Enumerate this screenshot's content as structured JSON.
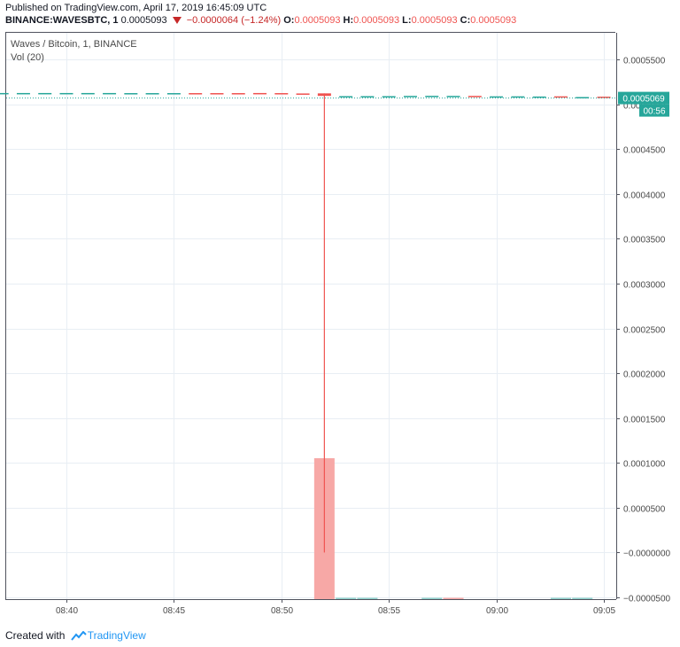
{
  "header": {
    "published": "Published on TradingView.com, April 17, 2019 16:45:09 UTC",
    "symbol": "BINANCE:WAVESBTC, 1",
    "last": "0.0005093",
    "change": "−0.0000064 (−1.24%)",
    "o_label": "O:",
    "o_value": "0.0005093",
    "h_label": "H:",
    "h_value": "0.0005093",
    "l_label": "L:",
    "l_value": "0.0005093",
    "c_label": "C:",
    "c_value": "0.0005093"
  },
  "legend": {
    "title": "Waves / Bitcoin, 1, BINANCE",
    "vol": "Vol (20)"
  },
  "footer": {
    "created_with": "Created with",
    "brand": "TradingView"
  },
  "colors": {
    "up": "#26a69a",
    "down": "#ef5350",
    "volume_down": "#f7a8a6",
    "grid": "#e8eef4",
    "price_badge": "#26a69a"
  },
  "chart_data": {
    "type": "candlestick",
    "ylim": [
      -5e-05,
      0.00056
    ],
    "y_ticks": [
      "0.0005500",
      "0.0005000",
      "0.0004500",
      "0.0004000",
      "0.0003500",
      "0.0003000",
      "0.0002500",
      "0.0002000",
      "0.0001500",
      "0.0001000",
      "0.0000500",
      "−0.0000000",
      "−0.0000500"
    ],
    "y_tick_values": [
      0.00055,
      0.0005,
      0.00045,
      0.0004,
      0.00035,
      0.0003,
      0.00025,
      0.0002,
      0.00015,
      0.0001,
      5e-05,
      0.0,
      -5e-05
    ],
    "x_ticks": [
      "08:40",
      "08:45",
      "08:50",
      "08:55",
      "09:00",
      "09:05"
    ],
    "x_tick_minutes": [
      40,
      45,
      50,
      55,
      60,
      65
    ],
    "candles": [
      {
        "t": 34,
        "o": 0.0005126,
        "h": 0.0005126,
        "l": 0.0005126,
        "c": 0.0005126,
        "dir": "down"
      },
      {
        "t": 35,
        "o": 0.0005126,
        "h": 0.0005126,
        "l": 0.0005126,
        "c": 0.0005126,
        "dir": "down"
      },
      {
        "t": 36,
        "o": 0.0005125,
        "h": 0.0005125,
        "l": 0.0005125,
        "c": 0.0005125,
        "dir": "up"
      },
      {
        "t": 37,
        "o": 0.0005125,
        "h": 0.0005125,
        "l": 0.0005125,
        "c": 0.0005125,
        "dir": "up"
      },
      {
        "t": 38,
        "o": 0.0005125,
        "h": 0.0005125,
        "l": 0.0005125,
        "c": 0.0005125,
        "dir": "up"
      },
      {
        "t": 39,
        "o": 0.0005125,
        "h": 0.0005125,
        "l": 0.0005125,
        "c": 0.0005125,
        "dir": "up"
      },
      {
        "t": 40,
        "o": 0.0005125,
        "h": 0.0005125,
        "l": 0.0005125,
        "c": 0.0005125,
        "dir": "up"
      },
      {
        "t": 41,
        "o": 0.0005125,
        "h": 0.0005125,
        "l": 0.0005125,
        "c": 0.0005125,
        "dir": "up"
      },
      {
        "t": 42,
        "o": 0.0005125,
        "h": 0.0005125,
        "l": 0.0005125,
        "c": 0.0005125,
        "dir": "up"
      },
      {
        "t": 43,
        "o": 0.0005124,
        "h": 0.0005124,
        "l": 0.0005124,
        "c": 0.0005124,
        "dir": "up"
      },
      {
        "t": 44,
        "o": 0.0005124,
        "h": 0.0005124,
        "l": 0.0005124,
        "c": 0.0005124,
        "dir": "up"
      },
      {
        "t": 45,
        "o": 0.0005124,
        "h": 0.0005124,
        "l": 0.0005124,
        "c": 0.0005124,
        "dir": "up"
      },
      {
        "t": 46,
        "o": 0.0005124,
        "h": 0.0005124,
        "l": 0.0005124,
        "c": 0.0005124,
        "dir": "down"
      },
      {
        "t": 47,
        "o": 0.0005124,
        "h": 0.0005124,
        "l": 0.0005124,
        "c": 0.0005124,
        "dir": "down"
      },
      {
        "t": 48,
        "o": 0.0005124,
        "h": 0.0005124,
        "l": 0.0005124,
        "c": 0.0005124,
        "dir": "down"
      },
      {
        "t": 49,
        "o": 0.0005125,
        "h": 0.0005125,
        "l": 0.0005118,
        "c": 0.0005118,
        "dir": "down"
      },
      {
        "t": 50,
        "o": 0.0005124,
        "h": 0.0005124,
        "l": 0.0005124,
        "c": 0.0005124,
        "dir": "down"
      },
      {
        "t": 51,
        "o": 0.000512,
        "h": 0.000512,
        "l": 0.000512,
        "c": 0.000512,
        "dir": "down"
      },
      {
        "t": 52,
        "o": 0.0005121,
        "h": 0.0005121,
        "l": 0.0,
        "c": 0.0005093,
        "dir": "down"
      },
      {
        "t": 53,
        "o": 0.000509,
        "h": 0.000509,
        "l": 0.0005085,
        "c": 0.0005085,
        "dir": "up"
      },
      {
        "t": 54,
        "o": 0.000509,
        "h": 0.000509,
        "l": 0.0005085,
        "c": 0.0005085,
        "dir": "up"
      },
      {
        "t": 55,
        "o": 0.000509,
        "h": 0.000509,
        "l": 0.000509,
        "c": 0.000509,
        "dir": "up"
      },
      {
        "t": 56,
        "o": 0.0005093,
        "h": 0.0005093,
        "l": 0.0005083,
        "c": 0.0005083,
        "dir": "up"
      },
      {
        "t": 57,
        "o": 0.0005094,
        "h": 0.0005094,
        "l": 0.0005083,
        "c": 0.0005083,
        "dir": "up"
      },
      {
        "t": 58,
        "o": 0.0005093,
        "h": 0.0005093,
        "l": 0.0005093,
        "c": 0.0005093,
        "dir": "up"
      },
      {
        "t": 59,
        "o": 0.0005093,
        "h": 0.0005093,
        "l": 0.0005083,
        "c": 0.0005083,
        "dir": "down"
      },
      {
        "t": 60,
        "o": 0.0005088,
        "h": 0.0005088,
        "l": 0.0005086,
        "c": 0.0005086,
        "dir": "up"
      },
      {
        "t": 61,
        "o": 0.0005088,
        "h": 0.0005088,
        "l": 0.0005086,
        "c": 0.0005086,
        "dir": "up"
      },
      {
        "t": 62,
        "o": 0.0005086,
        "h": 0.0005086,
        "l": 0.0005086,
        "c": 0.0005086,
        "dir": "up"
      },
      {
        "t": 63,
        "o": 0.0005088,
        "h": 0.0005088,
        "l": 0.0005079,
        "c": 0.0005079,
        "dir": "down"
      },
      {
        "t": 64,
        "o": 0.000508,
        "h": 0.000508,
        "l": 0.000508,
        "c": 0.000508,
        "dir": "up"
      },
      {
        "t": 65,
        "o": 0.0005084,
        "h": 0.0005084,
        "l": 0.0005079,
        "c": 0.0005079,
        "dir": "down"
      },
      {
        "t": 66,
        "o": 0.0005079,
        "h": 0.0005084,
        "l": 0.0005079,
        "c": 0.0005084,
        "dir": "up"
      }
    ],
    "volume": [
      {
        "t": 52,
        "value": 0.000105,
        "dir": "down"
      },
      {
        "t": 53,
        "value": 5e-07,
        "dir": "up"
      },
      {
        "t": 54,
        "value": 5e-07,
        "dir": "up"
      },
      {
        "t": 57,
        "value": 8e-07,
        "dir": "up"
      },
      {
        "t": 58,
        "value": 5e-07,
        "dir": "down"
      },
      {
        "t": 63,
        "value": 8e-07,
        "dir": "up"
      },
      {
        "t": 64,
        "value": 5e-07,
        "dir": "up"
      }
    ],
    "current_price": 0.0005069,
    "current_price_label": "0.0005069",
    "countdown_label": "00:56"
  }
}
